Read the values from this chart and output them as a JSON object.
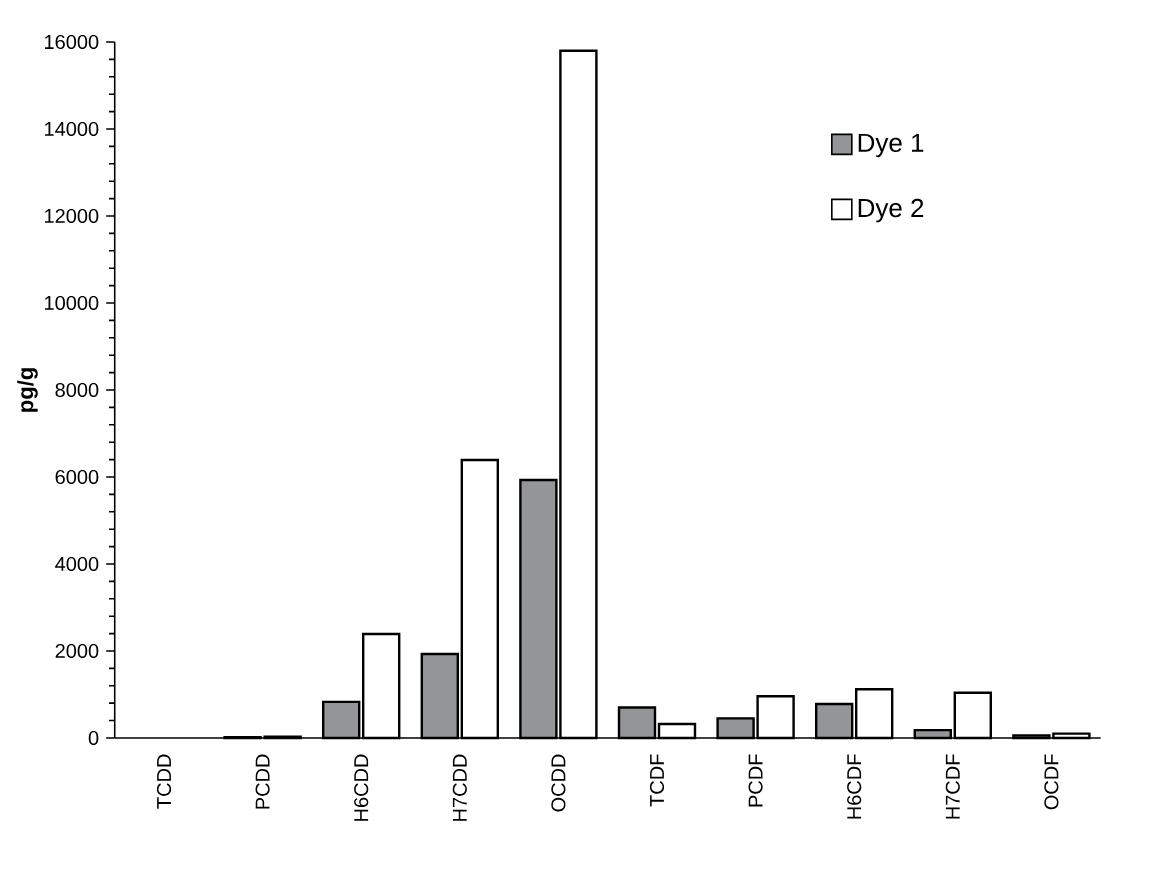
{
  "chart_data": {
    "type": "bar",
    "ylabel": "pg/g",
    "categories": [
      "TCDD",
      "PCDD",
      "H6CDD",
      "H7CDD",
      "OCDD",
      "TCDF",
      "PCDF",
      "H6CDF",
      "H7CDF",
      "OCDF"
    ],
    "series": [
      {
        "name": "Dye 1",
        "color": "#939598",
        "values": [
          null,
          20,
          830,
          1930,
          5930,
          700,
          450,
          780,
          180,
          60
        ]
      },
      {
        "name": "Dye 2",
        "color": "#ffffff",
        "values": [
          null,
          30,
          2390,
          6390,
          15800,
          320,
          960,
          1120,
          1040,
          100
        ]
      }
    ],
    "ylim": [
      0,
      16000
    ],
    "yticks": [
      0,
      2000,
      4000,
      6000,
      8000,
      10000,
      12000,
      14000,
      16000
    ],
    "grid": false,
    "legend": "top right"
  }
}
